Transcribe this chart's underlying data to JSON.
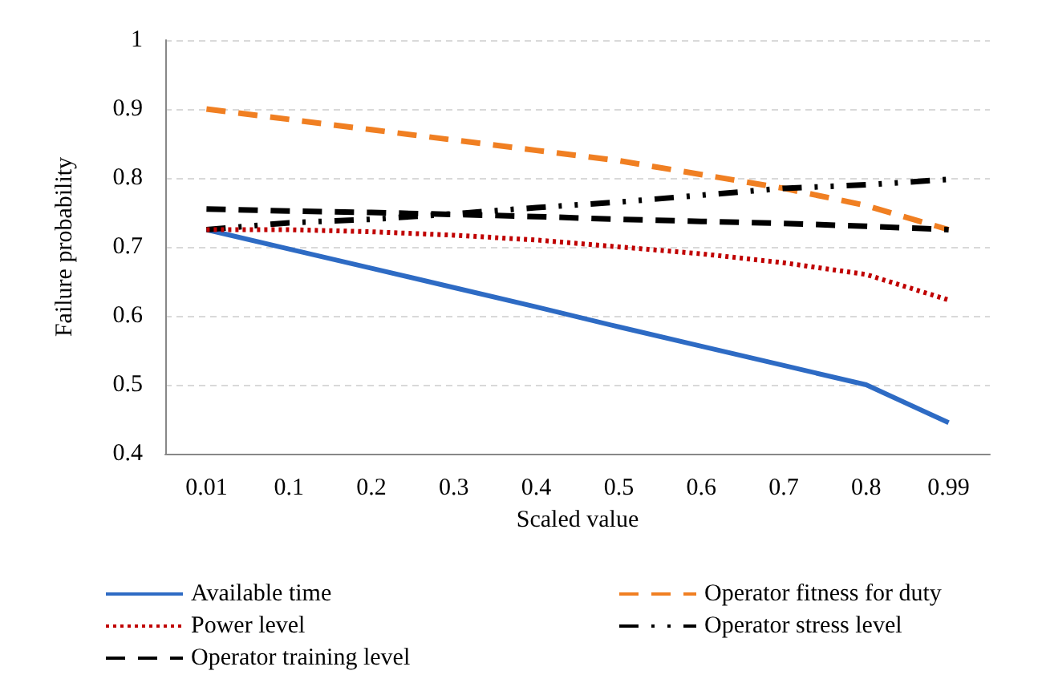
{
  "chart_data": {
    "type": "line",
    "xlabel": "Scaled value",
    "ylabel": "Failure probability",
    "categories": [
      "0.01",
      "0.1",
      "0.2",
      "0.3",
      "0.4",
      "0.5",
      "0.6",
      "0.7",
      "0.8",
      "0.99"
    ],
    "series": [
      {
        "name": "Available time",
        "color": "#2e6bc4",
        "line_style": "solid",
        "values": [
          0.725,
          0.697,
          0.669,
          0.641,
          0.613,
          0.584,
          0.556,
          0.528,
          0.5,
          0.445
        ]
      },
      {
        "name": "Operator fitness for duty",
        "color": "#f07f22",
        "line_style": "dashed",
        "values": [
          0.9,
          0.885,
          0.87,
          0.855,
          0.84,
          0.825,
          0.805,
          0.785,
          0.76,
          0.725
        ]
      },
      {
        "name": "Power level",
        "color": "#c00000",
        "line_style": "dotted",
        "values": [
          0.725,
          0.725,
          0.722,
          0.717,
          0.71,
          0.7,
          0.69,
          0.677,
          0.66,
          0.623
        ]
      },
      {
        "name": "Operator stress level",
        "color": "#000000",
        "line_style": "dashdot",
        "values": [
          0.725,
          0.735,
          0.74,
          0.748,
          0.757,
          0.765,
          0.775,
          0.785,
          0.79,
          0.798
        ]
      },
      {
        "name": "Operator training level",
        "color": "#000000",
        "line_style": "dashed",
        "values": [
          0.755,
          0.752,
          0.75,
          0.747,
          0.744,
          0.74,
          0.737,
          0.734,
          0.73,
          0.725
        ]
      }
    ],
    "ylim": [
      0.4,
      1
    ],
    "yticks": [
      0.4,
      0.5,
      0.6,
      0.7,
      0.8,
      0.9,
      1
    ],
    "grid": "y",
    "legend": "bottom",
    "marker": "none"
  }
}
